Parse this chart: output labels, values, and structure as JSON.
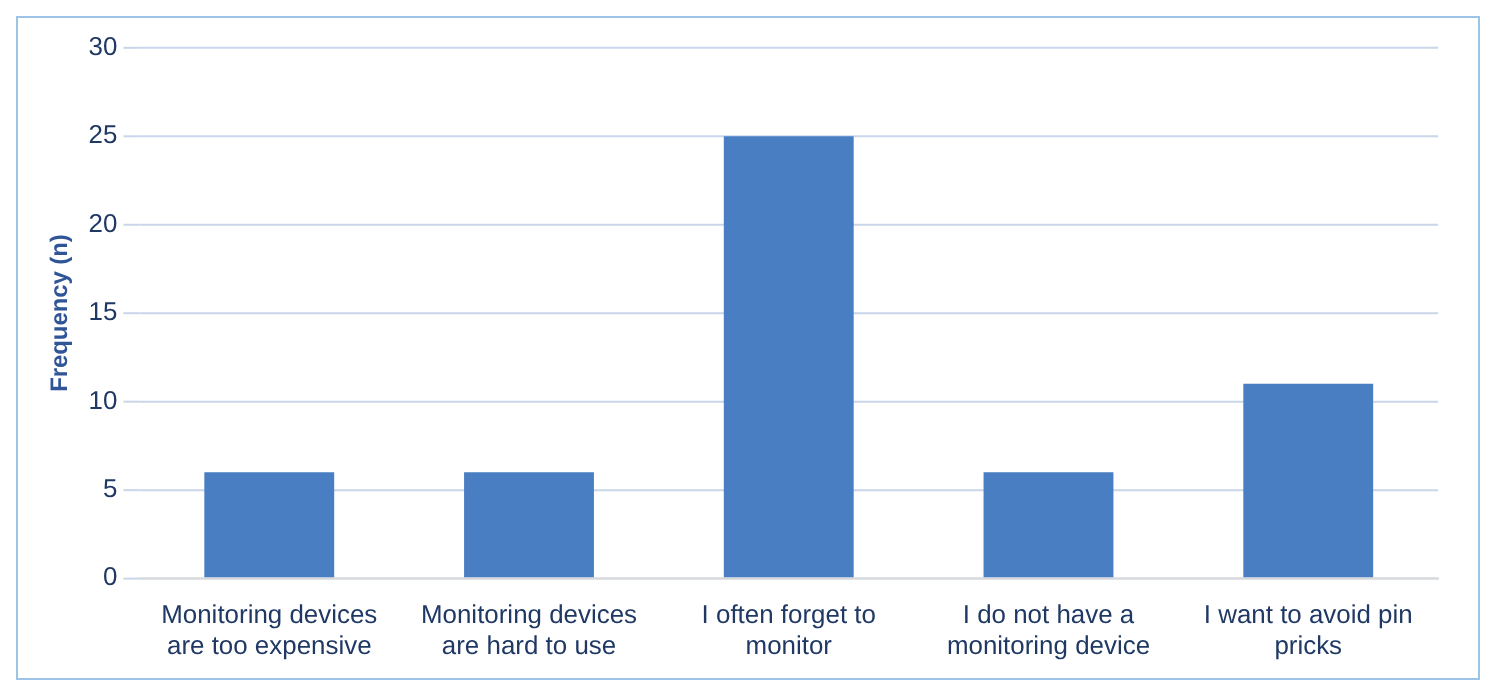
{
  "chart_data": {
    "type": "bar",
    "ylabel": "Frequency (n)",
    "categories": [
      "Monitoring devices are too expensive",
      "Monitoring devices are hard to use",
      "I often forget to monitor",
      "I do not have a monitoring device",
      "I want to avoid pin pricks"
    ],
    "values": [
      6,
      6,
      25,
      6,
      11
    ],
    "color": "#4a7ec2",
    "ylim": [
      0,
      30
    ],
    "yticks": [
      0,
      5,
      10,
      15,
      20,
      25,
      30
    ],
    "grid": "y",
    "legend": false
  }
}
